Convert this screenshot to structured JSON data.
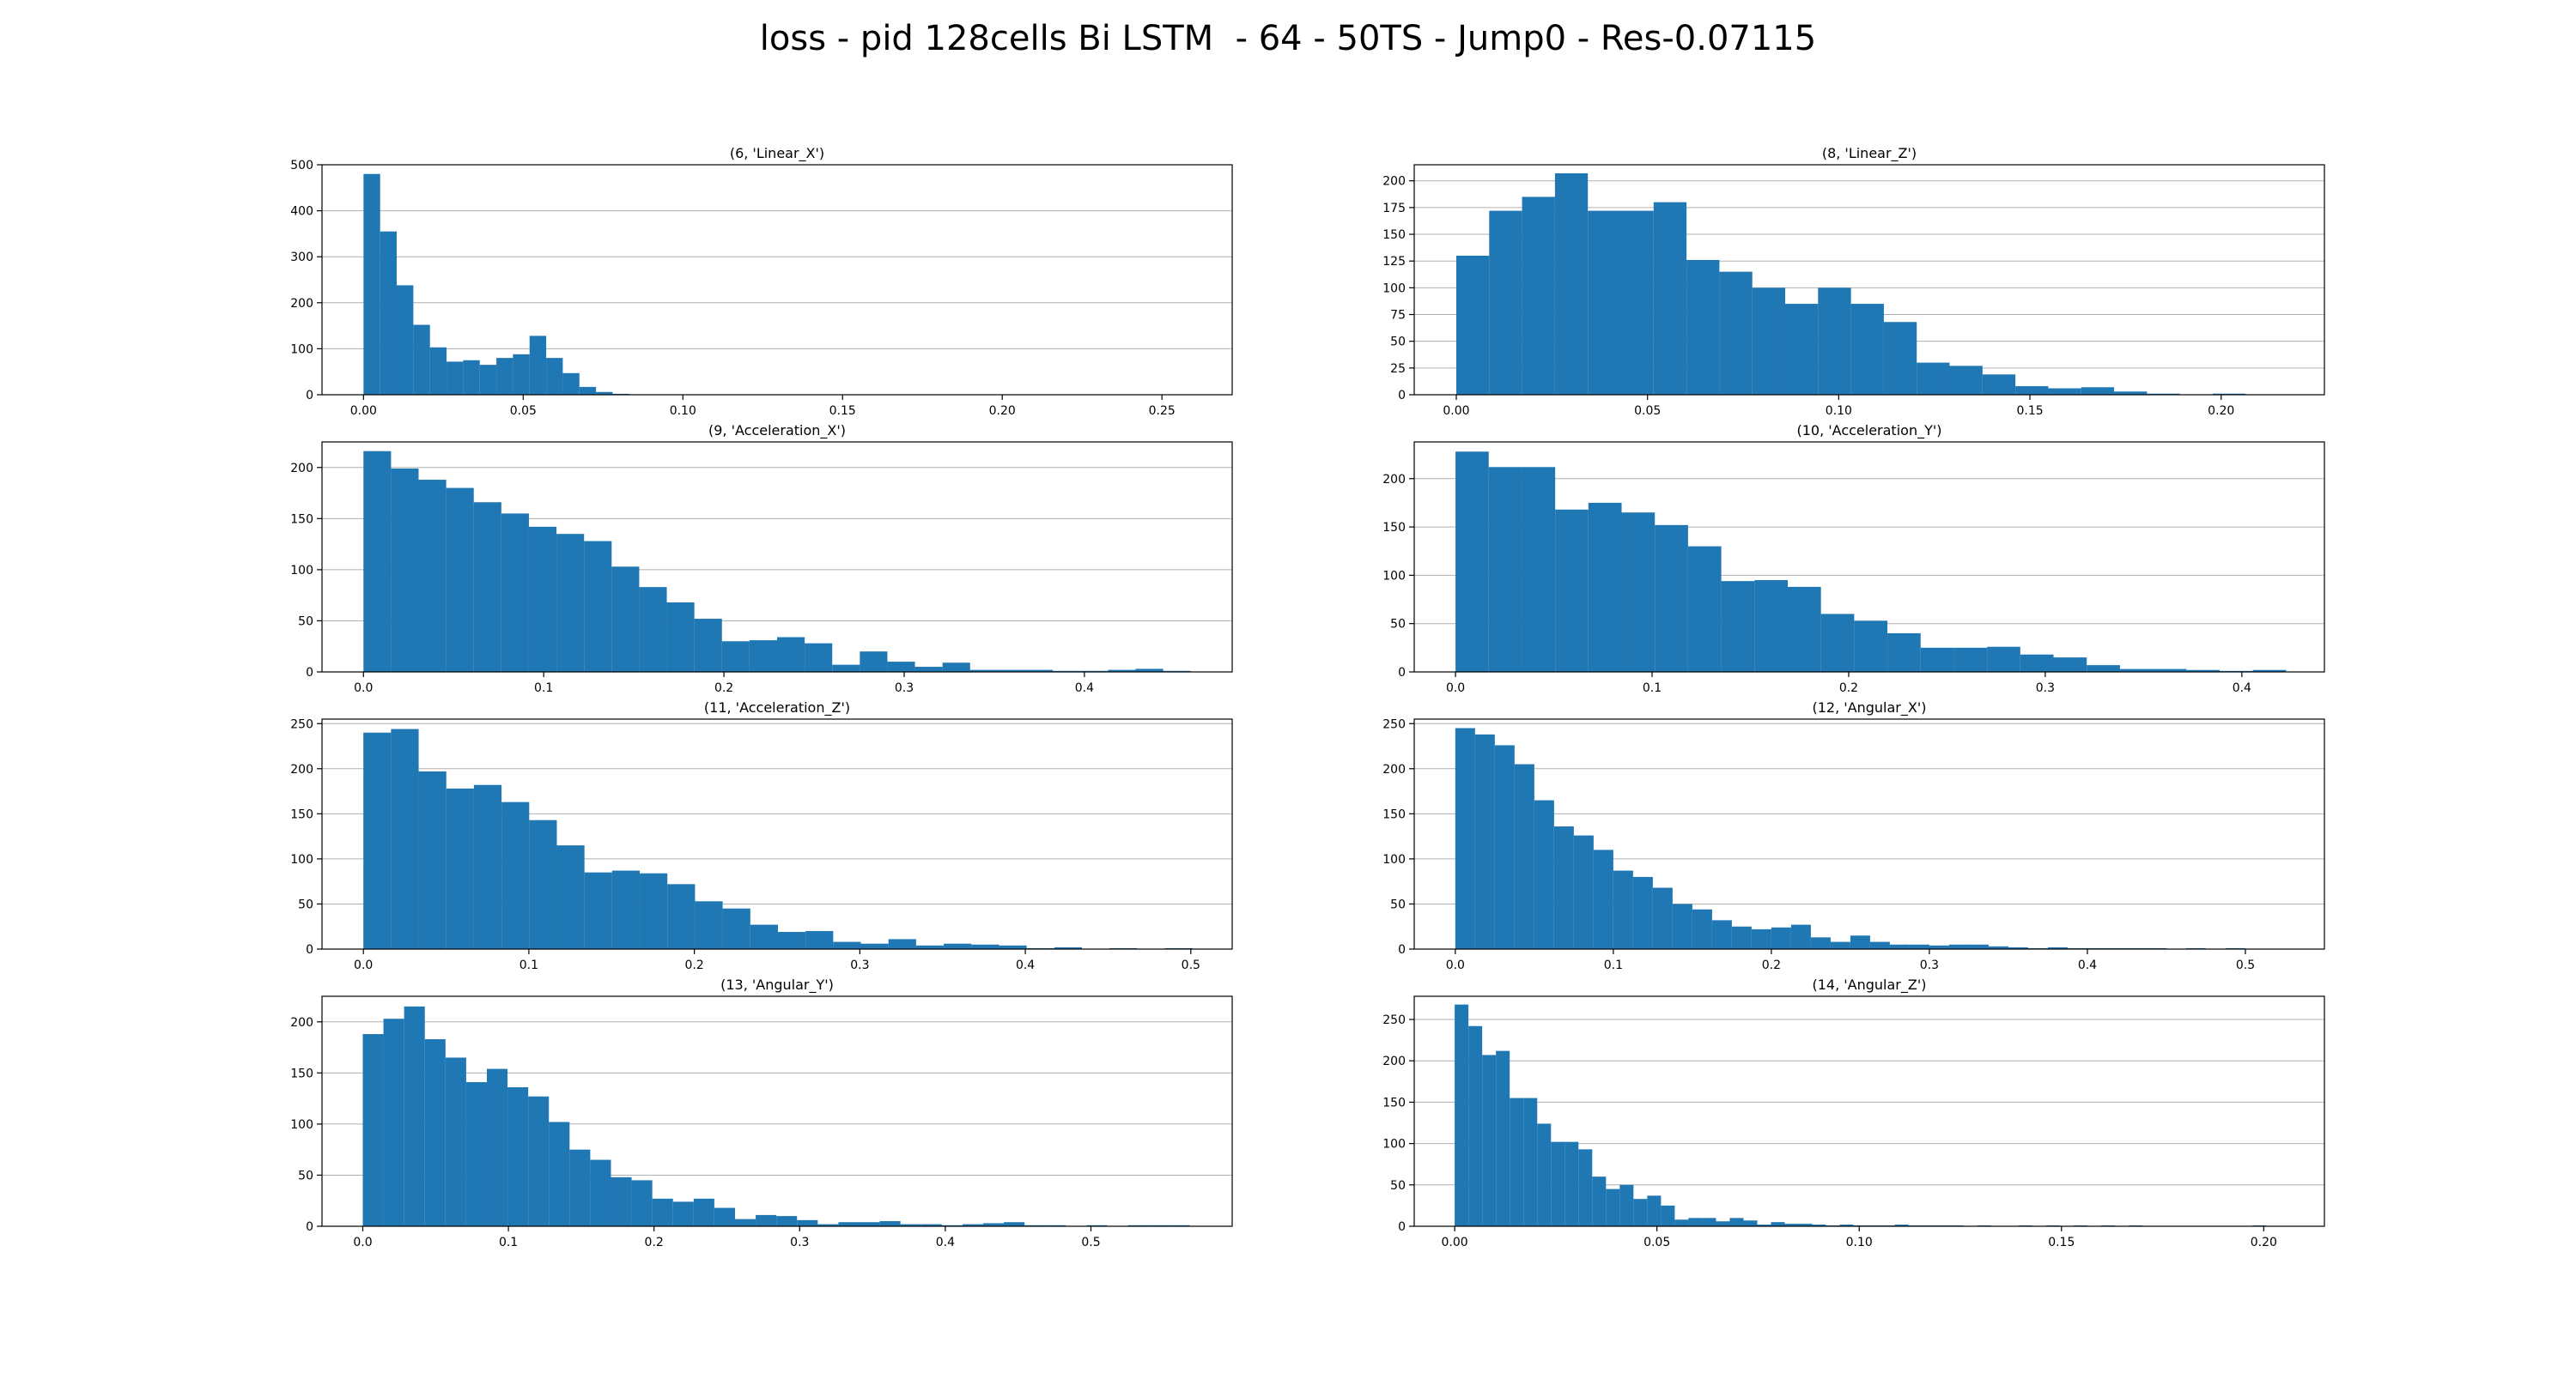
{
  "figure": {
    "title": "loss - pid 128cells Bi LSTM  - 64 - 50TS - Jump0 - Res-0.07115"
  },
  "colors": {
    "bar": "#1f77b4",
    "grid": "#b0b0b0",
    "axis": "#000000"
  },
  "chart_data": [
    {
      "type": "bar",
      "title": "(6, 'Linear_X')",
      "grid": "y",
      "xlim": [
        -0.013,
        0.272
      ],
      "ylim": [
        0,
        500
      ],
      "xticks": [
        0.0,
        0.05,
        0.1,
        0.15,
        0.2,
        0.25
      ],
      "xtick_labels": [
        "0.00",
        "0.05",
        "0.10",
        "0.15",
        "0.20",
        "0.25"
      ],
      "yticks": [
        0,
        100,
        200,
        300,
        400,
        500
      ],
      "ytick_labels": [
        "0",
        "100",
        "200",
        "300",
        "400",
        "500"
      ],
      "bin_start": 0.0,
      "bin_width": 0.0052,
      "values": [
        480,
        355,
        238,
        152,
        103,
        72,
        75,
        65,
        80,
        88,
        128,
        80,
        47,
        17,
        6,
        2,
        1,
        1,
        0,
        0,
        0,
        0,
        0,
        0,
        0,
        0,
        0,
        0,
        0,
        0,
        0,
        0,
        0,
        0,
        0,
        0,
        0,
        0,
        0,
        0,
        0,
        0,
        0,
        0,
        0,
        0,
        0,
        0,
        0,
        1
      ]
    },
    {
      "type": "bar",
      "title": "(8, 'Linear_Z')",
      "grid": "y",
      "xlim": [
        -0.011,
        0.227
      ],
      "ylim": [
        0,
        215
      ],
      "xticks": [
        0.0,
        0.05,
        0.1,
        0.15,
        0.2
      ],
      "xtick_labels": [
        "0.00",
        "0.05",
        "0.10",
        "0.15",
        "0.20"
      ],
      "yticks": [
        0,
        25,
        50,
        75,
        100,
        125,
        150,
        175,
        200
      ],
      "ytick_labels": [
        "0",
        "25",
        "50",
        "75",
        "100",
        "125",
        "150",
        "175",
        "200"
      ],
      "bin_start": 0.0,
      "bin_width": 0.0086,
      "values": [
        130,
        172,
        185,
        207,
        172,
        172,
        180,
        126,
        115,
        100,
        85,
        100,
        85,
        68,
        30,
        27,
        19,
        8,
        6,
        7,
        3,
        1,
        0,
        1,
        0
      ]
    },
    {
      "type": "bar",
      "title": "(9, 'Acceleration_X')",
      "grid": "y",
      "xlim": [
        -0.023,
        0.482
      ],
      "ylim": [
        0,
        225
      ],
      "xticks": [
        0.0,
        0.1,
        0.2,
        0.3,
        0.4
      ],
      "xtick_labels": [
        "0.0",
        "0.1",
        "0.2",
        "0.3",
        "0.4"
      ],
      "yticks": [
        0,
        50,
        100,
        150,
        200
      ],
      "ytick_labels": [
        "0",
        "50",
        "100",
        "150",
        "200"
      ],
      "bin_start": 0.0,
      "bin_width": 0.0153,
      "values": [
        216,
        199,
        188,
        180,
        166,
        155,
        142,
        135,
        128,
        103,
        83,
        68,
        52,
        30,
        31,
        34,
        28,
        7,
        20,
        10,
        5,
        9,
        2,
        2,
        2,
        1,
        1,
        2,
        3,
        1
      ]
    },
    {
      "type": "bar",
      "title": "(10, 'Acceleration_Y')",
      "grid": "y",
      "xlim": [
        -0.021,
        0.442
      ],
      "ylim": [
        0,
        238
      ],
      "xticks": [
        0.0,
        0.1,
        0.2,
        0.3,
        0.4
      ],
      "xtick_labels": [
        "0.0",
        "0.1",
        "0.2",
        "0.3",
        "0.4"
      ],
      "yticks": [
        0,
        50,
        100,
        150,
        200
      ],
      "ytick_labels": [
        "0",
        "50",
        "100",
        "150",
        "200"
      ],
      "bin_start": 0.0,
      "bin_width": 0.0169,
      "values": [
        228,
        212,
        212,
        168,
        175,
        165,
        152,
        130,
        94,
        95,
        88,
        60,
        53,
        40,
        25,
        25,
        26,
        18,
        15,
        7,
        3,
        3,
        2,
        1,
        2
      ]
    },
    {
      "type": "bar",
      "title": "(11, 'Acceleration_Z')",
      "grid": "y",
      "xlim": [
        -0.025,
        0.525
      ],
      "ylim": [
        0,
        255
      ],
      "xticks": [
        0.0,
        0.1,
        0.2,
        0.3,
        0.4,
        0.5
      ],
      "xtick_labels": [
        "0.0",
        "0.1",
        "0.2",
        "0.3",
        "0.4",
        "0.5"
      ],
      "yticks": [
        0,
        50,
        100,
        150,
        200,
        250
      ],
      "ytick_labels": [
        "0",
        "50",
        "100",
        "150",
        "200",
        "250"
      ],
      "bin_start": 0.0,
      "bin_width": 0.0167,
      "values": [
        240,
        244,
        197,
        178,
        182,
        163,
        143,
        115,
        85,
        87,
        84,
        72,
        53,
        45,
        27,
        19,
        20,
        8,
        6,
        11,
        4,
        6,
        5,
        4,
        1,
        2,
        0,
        1,
        0,
        1
      ]
    },
    {
      "type": "bar",
      "title": "(12, 'Angular_X')",
      "grid": "y",
      "xlim": [
        -0.026,
        0.55
      ],
      "ylim": [
        0,
        255
      ],
      "xticks": [
        0.0,
        0.1,
        0.2,
        0.3,
        0.4,
        0.5
      ],
      "xtick_labels": [
        "0.0",
        "0.1",
        "0.2",
        "0.3",
        "0.4",
        "0.5"
      ],
      "yticks": [
        0,
        50,
        100,
        150,
        200,
        250
      ],
      "ytick_labels": [
        "0",
        "50",
        "100",
        "150",
        "200",
        "250"
      ],
      "bin_start": 0.0,
      "bin_width": 0.0125,
      "values": [
        245,
        238,
        226,
        205,
        165,
        136,
        126,
        110,
        87,
        80,
        68,
        50,
        44,
        32,
        25,
        22,
        24,
        27,
        13,
        8,
        15,
        8,
        5,
        5,
        4,
        5,
        5,
        3,
        2,
        1,
        2,
        1,
        1,
        1,
        1,
        1,
        0,
        1,
        0,
        1
      ]
    },
    {
      "type": "bar",
      "title": "(13, 'Angular_Y')",
      "grid": "y",
      "xlim": [
        -0.028,
        0.597
      ],
      "ylim": [
        0,
        225
      ],
      "xticks": [
        0.0,
        0.1,
        0.2,
        0.3,
        0.4,
        0.5
      ],
      "xtick_labels": [
        "0.0",
        "0.1",
        "0.2",
        "0.3",
        "0.4",
        "0.5"
      ],
      "yticks": [
        0,
        50,
        100,
        150,
        200
      ],
      "ytick_labels": [
        "0",
        "50",
        "100",
        "150",
        "200"
      ],
      "bin_start": 0.0,
      "bin_width": 0.0142,
      "values": [
        188,
        203,
        215,
        183,
        165,
        141,
        154,
        136,
        127,
        102,
        75,
        65,
        48,
        45,
        27,
        24,
        27,
        18,
        7,
        11,
        10,
        6,
        2,
        4,
        4,
        5,
        2,
        2,
        1,
        2,
        3,
        4,
        1,
        1,
        0,
        1,
        0,
        1,
        1,
        1
      ]
    },
    {
      "type": "bar",
      "title": "(14, 'Angular_Z')",
      "grid": "y",
      "xlim": [
        -0.01,
        0.215
      ],
      "ylim": [
        0,
        278
      ],
      "xticks": [
        0.0,
        0.05,
        0.1,
        0.15,
        0.2
      ],
      "xtick_labels": [
        "0.00",
        "0.05",
        "0.10",
        "0.15",
        "0.20"
      ],
      "yticks": [
        0,
        50,
        100,
        150,
        200,
        250
      ],
      "ytick_labels": [
        "0",
        "50",
        "100",
        "150",
        "200",
        "250"
      ],
      "bin_start": 0.0,
      "bin_width": 0.0034,
      "values": [
        268,
        242,
        207,
        212,
        155,
        155,
        124,
        102,
        102,
        93,
        60,
        45,
        50,
        33,
        37,
        25,
        8,
        10,
        10,
        6,
        10,
        7,
        2,
        5,
        3,
        3,
        2,
        1,
        2,
        1,
        1,
        1,
        2,
        1,
        1,
        1,
        1,
        0,
        1,
        0,
        0,
        1,
        0,
        1,
        0,
        1,
        0,
        1,
        0,
        1,
        0,
        0,
        0,
        0,
        0,
        0,
        0,
        0,
        1,
        0
      ]
    }
  ]
}
